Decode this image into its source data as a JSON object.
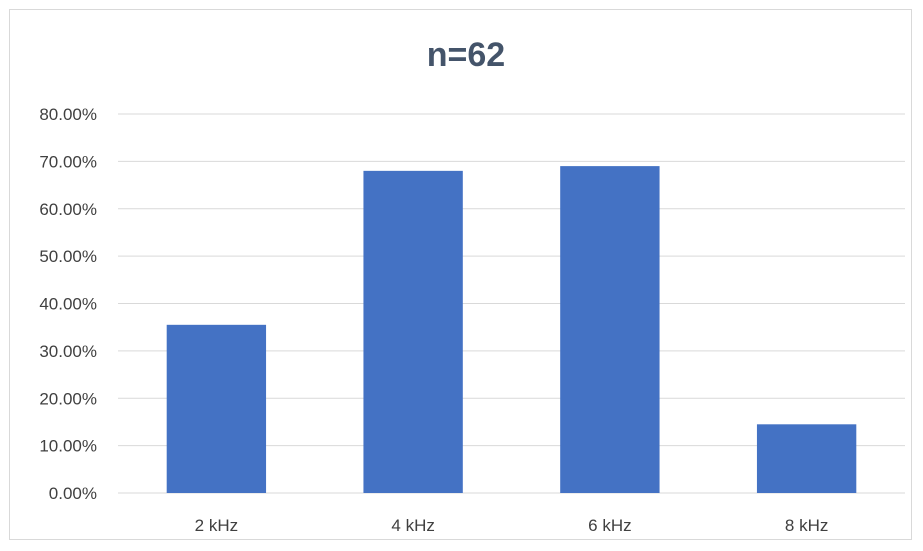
{
  "chart_data": {
    "type": "bar",
    "title": "n=62",
    "categories": [
      "2 kHz",
      "4 kHz",
      "6 kHz",
      "8 kHz"
    ],
    "series": [
      {
        "values": [
          0.355,
          0.68,
          0.69,
          0.145
        ]
      }
    ],
    "ylim": [
      0,
      0.8
    ],
    "yticks": [
      0,
      0.1,
      0.2,
      0.3,
      0.4,
      0.5,
      0.6,
      0.7,
      0.8
    ],
    "ytick_labels": [
      "0.00%",
      "10.00%",
      "20.00%",
      "30.00%",
      "40.00%",
      "50.00%",
      "60.00%",
      "70.00%",
      "80.00%"
    ],
    "xlabel": "",
    "ylabel": "",
    "grid": true,
    "legend": "none",
    "bar_color": "#4472c4",
    "grid_color": "#d9d9d9"
  }
}
